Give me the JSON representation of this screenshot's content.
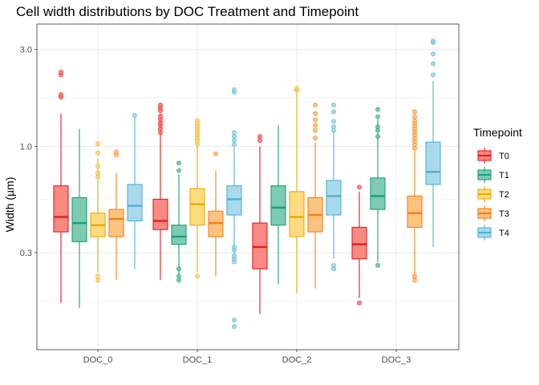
{
  "chart_data": {
    "type": "boxplot",
    "title": "Cell width distributions by DOC Treatment and Timepoint",
    "xlabel": "",
    "ylabel": "Width (µm)",
    "y_scale": "log10",
    "ylim": [
      0.1,
      4.0
    ],
    "y_ticks": [
      0.3,
      1.0,
      3.0
    ],
    "y_tick_labels": [
      "0.3",
      "1.0",
      "3.0"
    ],
    "categories": [
      "DOC_0",
      "DOC_1",
      "DOC_2",
      "DOC_3"
    ],
    "legend": {
      "title": "Timepoint",
      "position": "right"
    },
    "grid": true,
    "series": [
      {
        "name": "T0",
        "color": "#E41A1C",
        "fill": "#F8766D",
        "boxes": [
          {
            "category": "DOC_0",
            "min": 0.17,
            "q1": 0.38,
            "median": 0.45,
            "q3": 0.64,
            "max": 1.45,
            "outliers": [
              1.75,
              1.8,
              2.25,
              2.32
            ]
          },
          {
            "category": "DOC_1",
            "min": 0.22,
            "q1": 0.39,
            "median": 0.43,
            "q3": 0.55,
            "max": 1.45,
            "outliers": [
              1.17,
              1.22,
              1.27,
              1.31,
              1.36,
              1.41,
              1.5,
              1.55,
              1.6
            ]
          },
          {
            "category": "DOC_2",
            "min": 0.15,
            "q1": 0.25,
            "median": 0.32,
            "q3": 0.42,
            "max": 1.0,
            "outliers": [
              1.07,
              1.12
            ]
          },
          {
            "category": "DOC_3",
            "min": 0.18,
            "q1": 0.28,
            "median": 0.33,
            "q3": 0.4,
            "max": 0.6,
            "outliers": [
              0.17,
              0.63
            ]
          }
        ]
      },
      {
        "name": "T1",
        "color": "#1B9E77",
        "fill": "#66C2A5",
        "boxes": [
          {
            "category": "DOC_0",
            "min": 0.16,
            "q1": 0.34,
            "median": 0.42,
            "q3": 0.56,
            "max": 1.22,
            "outliers": []
          },
          {
            "category": "DOC_1",
            "min": 0.23,
            "q1": 0.33,
            "median": 0.36,
            "q3": 0.41,
            "max": 0.73,
            "outliers": [
              0.22,
              0.23,
              0.25,
              0.76,
              0.83
            ]
          },
          {
            "category": "DOC_2",
            "min": 0.21,
            "q1": 0.41,
            "median": 0.5,
            "q3": 0.64,
            "max": 1.27,
            "outliers": []
          },
          {
            "category": "DOC_3",
            "min": 0.27,
            "q1": 0.49,
            "median": 0.57,
            "q3": 0.7,
            "max": 1.36,
            "outliers": [
              0.26,
              1.12,
              1.2,
              1.25,
              1.4,
              1.52
            ]
          }
        ]
      },
      {
        "name": "T2",
        "color": "#E6AB02",
        "fill": "#FFD56B",
        "boxes": [
          {
            "category": "DOC_0",
            "min": 0.24,
            "q1": 0.36,
            "median": 0.41,
            "q3": 0.47,
            "max": 0.87,
            "outliers": [
              0.22,
              0.23,
              0.71,
              0.74,
              0.8,
              0.93,
              1.03
            ]
          },
          {
            "category": "DOC_1",
            "min": 0.24,
            "q1": 0.41,
            "median": 0.52,
            "q3": 0.62,
            "max": 1.25,
            "outliers": [
              0.23,
              1.03,
              1.07,
              1.1,
              1.14,
              1.18,
              1.22,
              1.26,
              1.3,
              1.34
            ]
          },
          {
            "category": "DOC_2",
            "min": 0.19,
            "q1": 0.36,
            "median": 0.45,
            "q3": 0.6,
            "max": 1.9,
            "outliers": [
              1.9,
              1.93
            ]
          },
          {
            "category": "DOC_3",
            "min": 0,
            "q1": 0,
            "median": 0,
            "q3": 0,
            "max": 0,
            "outliers": [],
            "present": false
          }
        ]
      },
      {
        "name": "T3",
        "color": "#F57F17",
        "fill": "#FDB96B",
        "boxes": [
          {
            "category": "DOC_0",
            "min": 0.22,
            "q1": 0.36,
            "median": 0.44,
            "q3": 0.49,
            "max": 0.74,
            "outliers": [
              0.91,
              0.94
            ]
          },
          {
            "category": "DOC_1",
            "min": 0.23,
            "q1": 0.36,
            "median": 0.42,
            "q3": 0.48,
            "max": 0.76,
            "outliers": [
              0.92
            ]
          },
          {
            "category": "DOC_2",
            "min": 0.2,
            "q1": 0.38,
            "median": 0.46,
            "q3": 0.56,
            "max": 1.05,
            "outliers": [
              1.1,
              1.2,
              1.27,
              1.35,
              1.45,
              1.6
            ]
          },
          {
            "category": "DOC_3",
            "min": 0.22,
            "q1": 0.4,
            "median": 0.47,
            "q3": 0.57,
            "max": 0.95,
            "outliers": [
              0.22,
              0.23,
              0.98,
              1.02,
              1.06,
              1.1,
              1.14,
              1.18,
              1.22,
              1.26,
              1.3,
              1.34,
              1.4,
              1.48
            ]
          }
        ]
      },
      {
        "name": "T4",
        "color": "#4FB0D5",
        "fill": "#9AD4E8",
        "boxes": [
          {
            "category": "DOC_0",
            "min": 0.25,
            "q1": 0.43,
            "median": 0.51,
            "q3": 0.65,
            "max": 1.4,
            "outliers": [
              1.42
            ]
          },
          {
            "category": "DOC_1",
            "min": 0.29,
            "q1": 0.46,
            "median": 0.55,
            "q3": 0.64,
            "max": 0.99,
            "outliers": [
              0.13,
              0.14,
              0.27,
              0.28,
              0.29,
              0.31,
              0.32,
              1.02,
              1.07,
              1.12,
              1.17,
              1.85,
              1.9
            ]
          },
          {
            "category": "DOC_2",
            "min": 0.28,
            "q1": 0.46,
            "median": 0.57,
            "q3": 0.68,
            "max": 1.2,
            "outliers": [
              0.25,
              0.26,
              1.2,
              1.25,
              1.33,
              1.48,
              1.6
            ]
          },
          {
            "category": "DOC_3",
            "min": 0.32,
            "q1": 0.65,
            "median": 0.75,
            "q3": 1.05,
            "max": 2.1,
            "outliers": [
              2.25,
              2.55,
              2.85,
              3.25,
              3.3
            ]
          }
        ]
      }
    ]
  }
}
